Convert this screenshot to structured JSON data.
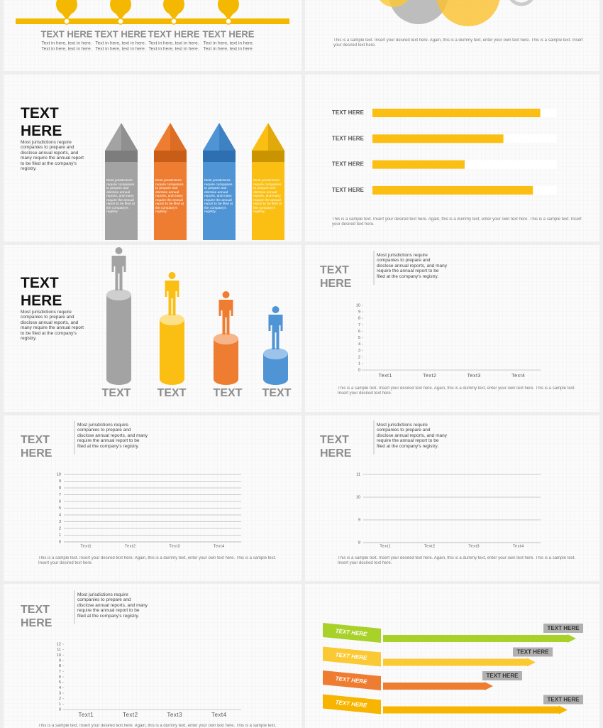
{
  "timeline": {
    "items": [
      {
        "title": "TEXT HERE",
        "lines": [
          "Text in here, text in here.",
          "Text in here, text in here."
        ]
      },
      {
        "title": "TEXT HERE",
        "lines": [
          "Text in here, text in here.",
          "Text in here, text in here."
        ]
      },
      {
        "title": "TEXT HERE",
        "lines": [
          "Text in here, text in here.",
          "Text in here, text in here."
        ]
      },
      {
        "title": "TEXT HERE",
        "lines": [
          "Text in here, text in here.",
          "Text in here, text in here."
        ]
      }
    ]
  },
  "circles": {
    "caption": "This is a sample text. Insert your desired text here. Again, this is a dummy text, enter your own text here. This is a sample text. Insert your desired text here."
  },
  "pencils": {
    "title": "TEXT HERE",
    "body": "Most jurisdictions require companies to prepare and disclose annual reports, and many require the annual report to be filed at the company's registry.",
    "items": [
      "Most jurisdictions require companies to prepare and disclose annual reports, and many require the annual report to be filed at the company's registry.",
      "Most jurisdictions require companies to prepare and disclose annual reports, and many require the annual report to be filed at the company's registry.",
      "Most jurisdictions require companies to prepare and disclose annual reports, and many require the annual report to be filed at the company's registry.",
      "Most jurisdictions require companies to prepare and disclose annual reports, and many require the annual report to be filed at the company's registry."
    ]
  },
  "hbars": {
    "labels": [
      "TEXT HERE",
      "TEXT HERE",
      "TEXT HERE",
      "TEXT HERE"
    ],
    "values": [
      91,
      71,
      50,
      87
    ],
    "color": "#fbbf14",
    "caption": "This is a sample text. Insert your desired text here. Again, this is a dummy text, enter your own text here. This is a sample text. Insert your desired text here."
  },
  "cylinders": {
    "title": "TEXT HERE",
    "body": "Most jurisdictions require companies to prepare and disclose annual reports, and many require the annual report to be filed at the company's registry.",
    "labels": [
      "TEXT",
      "TEXT",
      "TEXT",
      "TEXT"
    ]
  },
  "chart1": {
    "title": "TEXT HERE",
    "body": "Most jurisdictions require companies to prepare and disclose annual reports, and many require the annual report to be filed at the company's registry.",
    "ylim": [
      0,
      10
    ],
    "yticks": [
      0,
      1,
      2,
      3,
      4,
      5,
      6,
      7,
      8,
      9,
      10
    ],
    "grid": false,
    "categories": [
      "Text1",
      "Text2",
      "Text3",
      "Text4"
    ],
    "caption": "This is a sample text. Insert your desired text here. Again, this is a dummy text, enter your own text here. This is a sample text. Insert your desired text here."
  },
  "chart2": {
    "title": "TEXT HERE",
    "body": "Most jurisdictions require companies to prepare and disclose annual reports, and many require the annual report to be filed at the company's registry.",
    "ylim": [
      0,
      10
    ],
    "yticks": [
      0,
      1,
      2,
      3,
      4,
      5,
      6,
      7,
      8,
      9,
      10
    ],
    "grid": true,
    "categories": [
      "Text1",
      "Text2",
      "Text3",
      "Text4"
    ],
    "caption": "This is a sample text. Insert your desired text here. Again, this is a dummy text, enter your own text here. This is a sample text. Insert your desired text here."
  },
  "chart3": {
    "title": "TEXT HERE",
    "body": "Most jurisdictions require companies to prepare and disclose annual reports, and many require the annual report to be filed at the company's registry.",
    "ylim": [
      8,
      11
    ],
    "yticks": [
      8,
      9,
      10,
      11
    ],
    "grid": true,
    "categories": [
      "Text1",
      "Text2",
      "Text3",
      "Text4"
    ],
    "caption": "This is a sample text. Insert your desired text here. Again, this is a dummy text, enter your own text here. This is a sample text. Insert your desired text here."
  },
  "chart4": {
    "title": "TEXT HERE",
    "body": "Most jurisdictions require companies to prepare and disclose annual reports, and many require the annual report to be filed at the company's registry.",
    "ylim": [
      0,
      12
    ],
    "yticks": [
      0,
      1,
      2,
      3,
      4,
      5,
      6,
      7,
      8,
      9,
      10,
      11,
      12
    ],
    "grid": false,
    "categories": [
      "Text1",
      "Text2",
      "Text3",
      "Text4"
    ],
    "caption": "This is a sample text. Insert your desired text here. Again, this is a dummy text, enter your own text here. This is a sample text. Insert your desired text here."
  },
  "ribbons": {
    "labels": [
      "TEXT HERE",
      "TEXT HERE",
      "TEXT HERE",
      "TEXT HERE"
    ],
    "tags": [
      "TEXT HERE",
      "TEXT HERE",
      "TEXT HERE",
      "TEXT HERE"
    ]
  }
}
